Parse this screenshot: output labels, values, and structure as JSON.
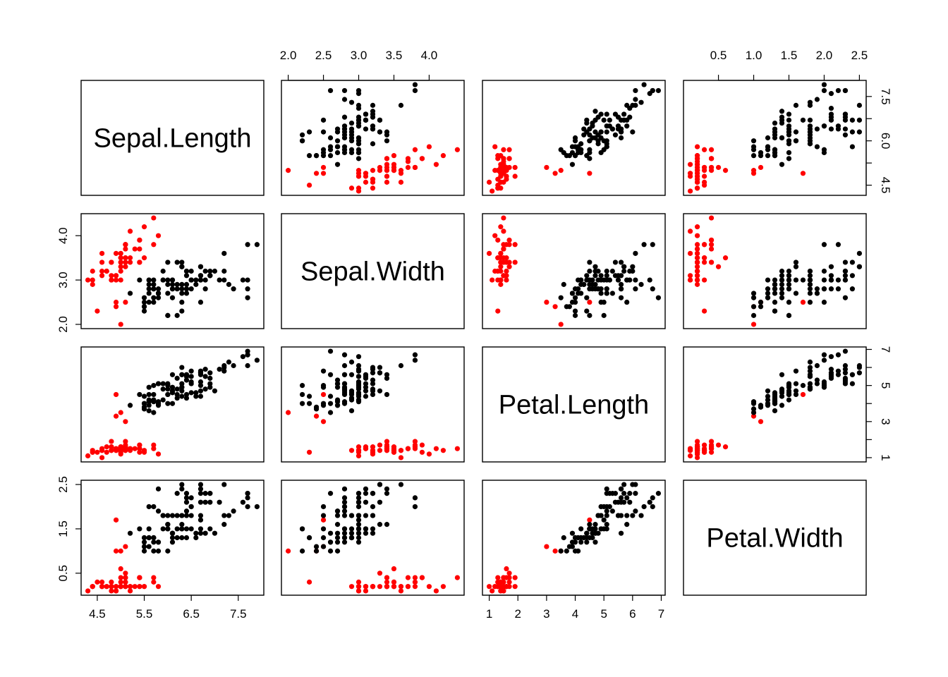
{
  "chart_data": {
    "type": "scatter",
    "title": "",
    "kind": "scatterplot-matrix",
    "variables": [
      "Sepal.Length",
      "Sepal.Width",
      "Petal.Length",
      "Petal.Width"
    ],
    "ranges": {
      "Sepal.Length": [
        4.3,
        7.9
      ],
      "Sepal.Width": [
        2.0,
        4.4
      ],
      "Petal.Length": [
        1.0,
        6.9
      ],
      "Petal.Width": [
        0.1,
        2.5
      ]
    },
    "ticks": {
      "Sepal.Length": {
        "values": [
          4.5,
          5.5,
          6.5,
          7.5
        ],
        "labels": [
          "4.5",
          "5.5",
          "6.5",
          "7.5"
        ]
      },
      "Sepal.Width": {
        "values": [
          2.0,
          2.5,
          3.0,
          3.5,
          4.0
        ],
        "labels": [
          "2.0",
          "2.5",
          "3.0",
          "3.5",
          "4.0"
        ]
      },
      "Petal.Length": {
        "values": [
          1,
          2,
          3,
          4,
          5,
          6,
          7
        ],
        "labels": [
          "1",
          "2",
          "3",
          "4",
          "5",
          "6",
          "7"
        ]
      },
      "Petal.Width": {
        "values": [
          0.5,
          1.0,
          1.5,
          2.0,
          2.5
        ],
        "labels": [
          "0.5",
          "1.0",
          "1.5",
          "2.0",
          "2.5"
        ]
      }
    },
    "left_ticks": {
      "Sepal.Width": {
        "values": [
          2.0,
          3.0,
          4.0
        ],
        "labels": [
          "2.0",
          "3.0",
          "4.0"
        ]
      },
      "Petal.Width": {
        "values": [
          0.5,
          1.5,
          2.5
        ],
        "labels": [
          "0.5",
          "1.5",
          "2.5"
        ]
      }
    },
    "right_ticks": {
      "Sepal.Length": {
        "values": [
          4.5,
          5.25,
          6.0,
          6.75,
          7.5
        ],
        "labels": [
          "4.5",
          "",
          "6.0",
          "",
          "7.5"
        ]
      },
      "Petal.Length": {
        "values": [
          1,
          2,
          3,
          4,
          5,
          6,
          7
        ],
        "labels": [
          "1",
          "",
          "3",
          "",
          "5",
          "",
          "7"
        ]
      }
    },
    "grid": false,
    "legend": "none",
    "series": [
      {
        "color": "#ff0000",
        "points": [
          [
            5.1,
            3.5,
            1.4,
            0.2
          ],
          [
            4.9,
            3.0,
            1.4,
            0.2
          ],
          [
            4.7,
            3.2,
            1.3,
            0.2
          ],
          [
            4.6,
            3.1,
            1.5,
            0.2
          ],
          [
            5.0,
            3.6,
            1.4,
            0.2
          ],
          [
            5.4,
            3.9,
            1.7,
            0.4
          ],
          [
            4.6,
            3.4,
            1.4,
            0.3
          ],
          [
            5.0,
            3.4,
            1.5,
            0.2
          ],
          [
            4.4,
            2.9,
            1.4,
            0.2
          ],
          [
            4.9,
            3.1,
            1.5,
            0.1
          ],
          [
            5.4,
            3.7,
            1.5,
            0.2
          ],
          [
            4.8,
            3.4,
            1.6,
            0.2
          ],
          [
            4.8,
            3.0,
            1.4,
            0.1
          ],
          [
            4.3,
            3.0,
            1.1,
            0.1
          ],
          [
            5.8,
            4.0,
            1.2,
            0.2
          ],
          [
            5.7,
            4.4,
            1.5,
            0.4
          ],
          [
            5.4,
            3.9,
            1.3,
            0.4
          ],
          [
            5.1,
            3.5,
            1.4,
            0.3
          ],
          [
            5.7,
            3.8,
            1.7,
            0.3
          ],
          [
            5.1,
            3.8,
            1.5,
            0.3
          ],
          [
            5.4,
            3.4,
            1.7,
            0.2
          ],
          [
            5.1,
            3.7,
            1.5,
            0.4
          ],
          [
            4.6,
            3.6,
            1.0,
            0.2
          ],
          [
            5.1,
            3.3,
            1.7,
            0.5
          ],
          [
            4.8,
            3.4,
            1.9,
            0.2
          ],
          [
            5.0,
            3.0,
            1.6,
            0.2
          ],
          [
            5.0,
            3.4,
            1.6,
            0.4
          ],
          [
            5.2,
            3.5,
            1.5,
            0.2
          ],
          [
            5.2,
            3.4,
            1.4,
            0.2
          ],
          [
            4.7,
            3.2,
            1.6,
            0.2
          ],
          [
            4.8,
            3.1,
            1.6,
            0.2
          ],
          [
            5.4,
            3.4,
            1.5,
            0.4
          ],
          [
            5.2,
            4.1,
            1.5,
            0.1
          ],
          [
            5.5,
            4.2,
            1.4,
            0.2
          ],
          [
            4.9,
            3.1,
            1.5,
            0.2
          ],
          [
            5.0,
            3.2,
            1.2,
            0.2
          ],
          [
            5.5,
            3.5,
            1.3,
            0.2
          ],
          [
            4.9,
            3.6,
            1.4,
            0.1
          ],
          [
            4.4,
            3.0,
            1.3,
            0.2
          ],
          [
            5.1,
            3.4,
            1.5,
            0.2
          ],
          [
            5.0,
            3.5,
            1.3,
            0.3
          ],
          [
            4.5,
            2.3,
            1.3,
            0.3
          ],
          [
            4.4,
            3.2,
            1.3,
            0.2
          ],
          [
            5.0,
            3.5,
            1.6,
            0.6
          ],
          [
            5.1,
            3.8,
            1.9,
            0.4
          ],
          [
            4.8,
            3.0,
            1.4,
            0.3
          ],
          [
            5.1,
            3.8,
            1.6,
            0.2
          ],
          [
            4.6,
            3.2,
            1.4,
            0.2
          ],
          [
            5.3,
            3.7,
            1.5,
            0.2
          ],
          [
            5.0,
            3.3,
            1.4,
            0.2
          ],
          [
            4.9,
            2.4,
            3.3,
            1.0
          ],
          [
            5.0,
            2.0,
            3.5,
            1.0
          ],
          [
            4.9,
            2.5,
            4.5,
            1.7
          ],
          [
            5.1,
            2.5,
            3.0,
            1.1
          ]
        ]
      },
      {
        "color": "#000000",
        "points": [
          [
            7.0,
            3.2,
            4.7,
            1.4
          ],
          [
            6.4,
            3.2,
            4.5,
            1.5
          ],
          [
            6.9,
            3.1,
            4.9,
            1.5
          ],
          [
            5.5,
            2.3,
            4.0,
            1.3
          ],
          [
            6.5,
            2.8,
            4.6,
            1.5
          ],
          [
            5.7,
            2.8,
            4.5,
            1.3
          ],
          [
            6.3,
            3.3,
            4.7,
            1.6
          ],
          [
            6.6,
            2.9,
            4.6,
            1.3
          ],
          [
            5.2,
            2.7,
            3.9,
            1.4
          ],
          [
            5.9,
            3.0,
            4.2,
            1.5
          ],
          [
            6.0,
            2.2,
            4.0,
            1.0
          ],
          [
            6.1,
            2.9,
            4.7,
            1.4
          ],
          [
            5.6,
            2.9,
            3.6,
            1.3
          ],
          [
            6.7,
            3.1,
            4.4,
            1.4
          ],
          [
            5.6,
            3.0,
            4.5,
            1.5
          ],
          [
            5.8,
            2.7,
            4.1,
            1.0
          ],
          [
            6.2,
            2.2,
            4.5,
            1.5
          ],
          [
            5.6,
            2.5,
            3.9,
            1.1
          ],
          [
            5.9,
            3.2,
            4.8,
            1.8
          ],
          [
            6.1,
            2.8,
            4.0,
            1.3
          ],
          [
            6.3,
            2.5,
            4.9,
            1.5
          ],
          [
            6.1,
            2.8,
            4.7,
            1.2
          ],
          [
            6.4,
            2.9,
            4.3,
            1.3
          ],
          [
            6.6,
            3.0,
            4.4,
            1.4
          ],
          [
            6.8,
            2.8,
            4.8,
            1.4
          ],
          [
            6.7,
            3.0,
            5.0,
            1.7
          ],
          [
            6.0,
            2.9,
            4.5,
            1.5
          ],
          [
            5.7,
            2.6,
            3.5,
            1.0
          ],
          [
            5.5,
            2.4,
            3.8,
            1.1
          ],
          [
            5.5,
            2.4,
            3.7,
            1.0
          ],
          [
            5.8,
            2.7,
            3.9,
            1.2
          ],
          [
            6.0,
            2.7,
            5.1,
            1.6
          ],
          [
            5.4,
            3.0,
            4.5,
            1.5
          ],
          [
            6.0,
            3.4,
            4.5,
            1.6
          ],
          [
            6.7,
            3.1,
            4.7,
            1.5
          ],
          [
            6.3,
            2.3,
            4.4,
            1.3
          ],
          [
            5.6,
            3.0,
            4.1,
            1.3
          ],
          [
            5.5,
            2.5,
            4.0,
            1.3
          ],
          [
            5.5,
            2.6,
            4.4,
            1.2
          ],
          [
            6.1,
            3.0,
            4.6,
            1.4
          ],
          [
            5.8,
            2.6,
            4.0,
            1.2
          ],
          [
            5.6,
            2.7,
            4.2,
            1.3
          ],
          [
            5.7,
            3.0,
            4.2,
            1.2
          ],
          [
            5.7,
            2.9,
            4.2,
            1.3
          ],
          [
            6.2,
            2.9,
            4.3,
            1.3
          ],
          [
            5.7,
            2.8,
            4.1,
            1.3
          ],
          [
            6.3,
            3.3,
            6.0,
            2.5
          ],
          [
            5.8,
            2.7,
            5.1,
            1.9
          ],
          [
            7.1,
            3.0,
            5.9,
            2.1
          ],
          [
            6.3,
            2.9,
            5.6,
            1.8
          ],
          [
            6.5,
            3.0,
            5.8,
            2.2
          ],
          [
            7.6,
            3.0,
            6.6,
            2.1
          ],
          [
            7.3,
            2.9,
            6.3,
            1.8
          ],
          [
            6.7,
            2.5,
            5.8,
            1.8
          ],
          [
            7.2,
            3.6,
            6.1,
            2.5
          ],
          [
            6.5,
            3.2,
            5.1,
            2.0
          ],
          [
            6.4,
            2.7,
            5.3,
            1.9
          ],
          [
            6.8,
            3.0,
            5.5,
            2.1
          ],
          [
            5.7,
            2.5,
            5.0,
            2.0
          ],
          [
            5.8,
            2.8,
            5.1,
            2.4
          ],
          [
            6.4,
            3.2,
            5.3,
            2.3
          ],
          [
            6.5,
            3.0,
            5.5,
            1.8
          ],
          [
            7.7,
            3.8,
            6.7,
            2.2
          ],
          [
            7.7,
            2.6,
            6.9,
            2.3
          ],
          [
            6.0,
            2.2,
            5.0,
            1.5
          ],
          [
            6.9,
            3.2,
            5.7,
            2.3
          ],
          [
            5.6,
            2.8,
            4.9,
            2.0
          ],
          [
            7.7,
            2.8,
            6.7,
            2.0
          ],
          [
            6.3,
            2.7,
            4.9,
            1.8
          ],
          [
            6.7,
            3.3,
            5.7,
            2.1
          ],
          [
            7.2,
            3.2,
            6.0,
            1.8
          ],
          [
            6.2,
            2.8,
            4.8,
            1.8
          ],
          [
            6.1,
            3.0,
            4.9,
            1.8
          ],
          [
            6.4,
            2.8,
            5.6,
            2.1
          ],
          [
            7.2,
            3.0,
            5.8,
            1.6
          ],
          [
            7.4,
            2.8,
            6.1,
            1.9
          ],
          [
            7.9,
            3.8,
            6.4,
            2.0
          ],
          [
            6.4,
            2.8,
            5.6,
            2.2
          ],
          [
            6.3,
            2.8,
            5.1,
            1.5
          ],
          [
            6.1,
            2.6,
            5.6,
            1.4
          ],
          [
            7.7,
            3.0,
            6.1,
            2.3
          ],
          [
            6.3,
            3.4,
            5.6,
            2.4
          ],
          [
            6.4,
            3.1,
            5.5,
            1.8
          ],
          [
            6.0,
            3.0,
            4.8,
            1.8
          ],
          [
            6.9,
            3.1,
            5.4,
            2.1
          ],
          [
            6.7,
            3.1,
            5.6,
            2.4
          ],
          [
            6.9,
            3.1,
            5.1,
            2.3
          ],
          [
            6.8,
            3.2,
            5.9,
            2.3
          ],
          [
            6.7,
            3.3,
            5.7,
            2.5
          ],
          [
            6.7,
            3.0,
            5.2,
            2.3
          ],
          [
            6.5,
            3.0,
            5.2,
            2.0
          ],
          [
            6.2,
            3.4,
            5.4,
            2.3
          ],
          [
            5.9,
            3.0,
            5.1,
            1.8
          ]
        ]
      }
    ]
  }
}
